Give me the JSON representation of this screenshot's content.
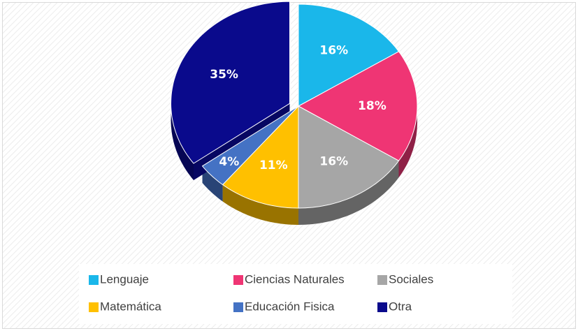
{
  "chart_data": {
    "type": "pie",
    "categories": [
      "Lenguaje",
      "Ciencias Naturales",
      "Sociales",
      "Matemática",
      "Educación Fisica",
      "Otra"
    ],
    "values": [
      16,
      18,
      16,
      11,
      4,
      35
    ],
    "value_labels": [
      "16%",
      "18%",
      "16%",
      "11%",
      "4%",
      "35%"
    ],
    "colors": [
      "#1ab7ea",
      "#ef3574",
      "#a6a6a6",
      "#ffc000",
      "#4472c4",
      "#0a0a8c"
    ],
    "legend": "bottom"
  }
}
